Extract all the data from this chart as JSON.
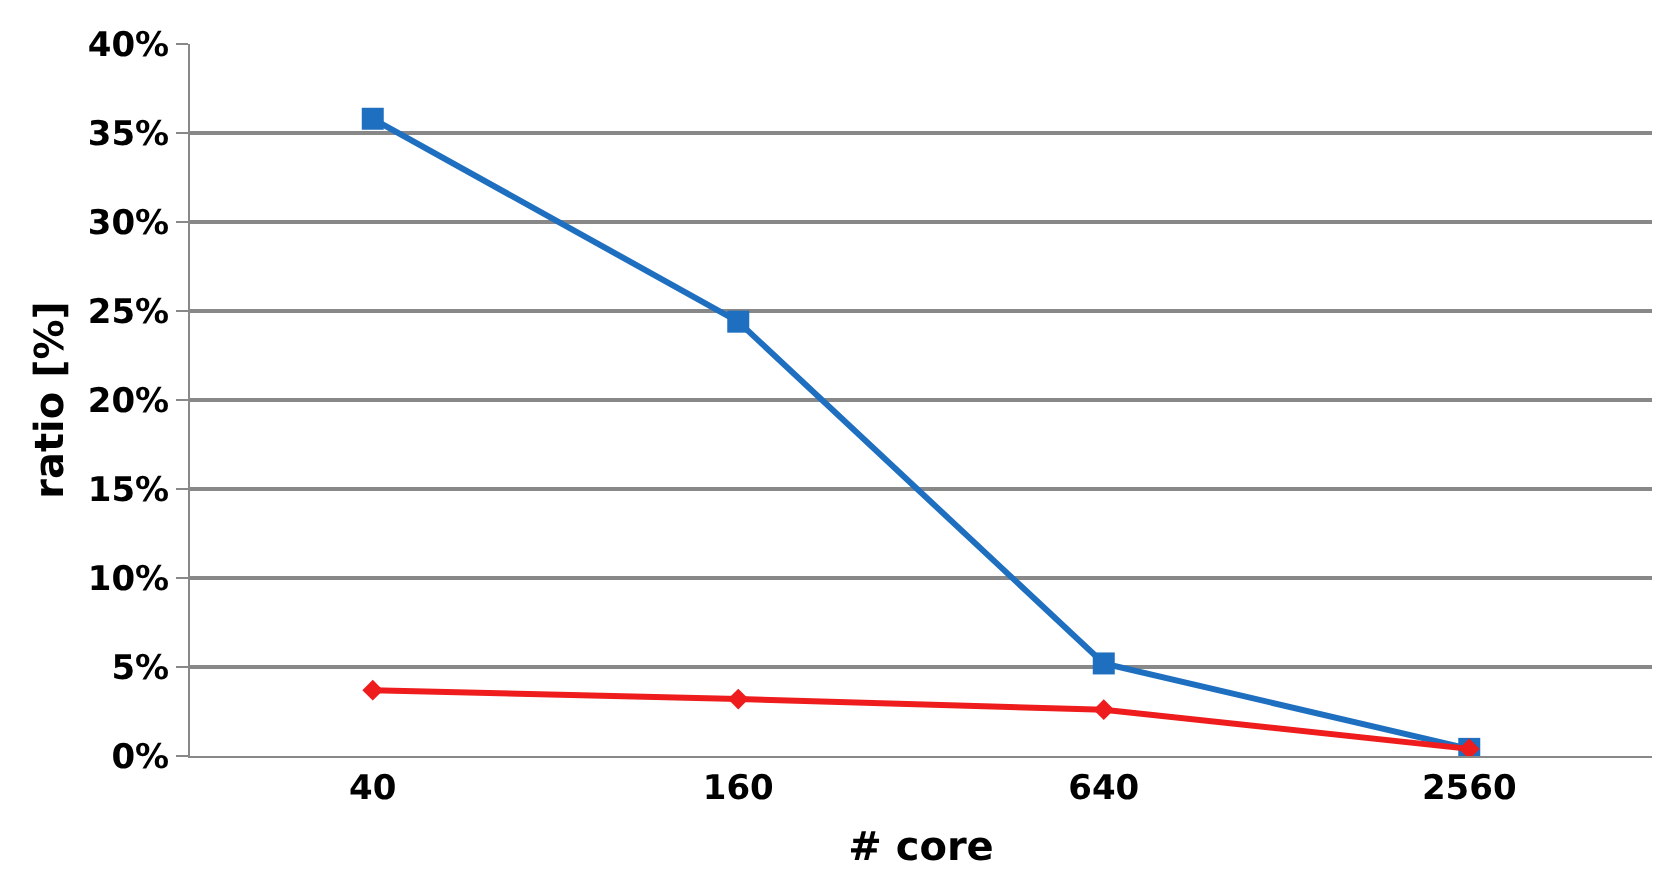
{
  "chart_data": {
    "type": "line",
    "xlabel": "# core",
    "ylabel": "ratio [%]",
    "categories": [
      "40",
      "160",
      "640",
      "2560"
    ],
    "series": [
      {
        "color": "#1f6fc0",
        "values": [
          35.8,
          24.4,
          5.2,
          0.4
        ],
        "marker": "square"
      },
      {
        "color": "#ee1c1c",
        "values": [
          3.7,
          3.2,
          2.6,
          0.4
        ],
        "marker": "diamond"
      }
    ],
    "ylim": [
      0,
      40
    ],
    "yticks": [
      {
        "value": 0,
        "label": "0%"
      },
      {
        "value": 5,
        "label": "5%"
      },
      {
        "value": 10,
        "label": "10%"
      },
      {
        "value": 15,
        "label": "15%"
      },
      {
        "value": 20,
        "label": "20%"
      },
      {
        "value": 25,
        "label": "25%"
      },
      {
        "value": 30,
        "label": "30%"
      },
      {
        "value": 35,
        "label": "35%"
      },
      {
        "value": 40,
        "label": "40%"
      }
    ],
    "grid": "y"
  }
}
